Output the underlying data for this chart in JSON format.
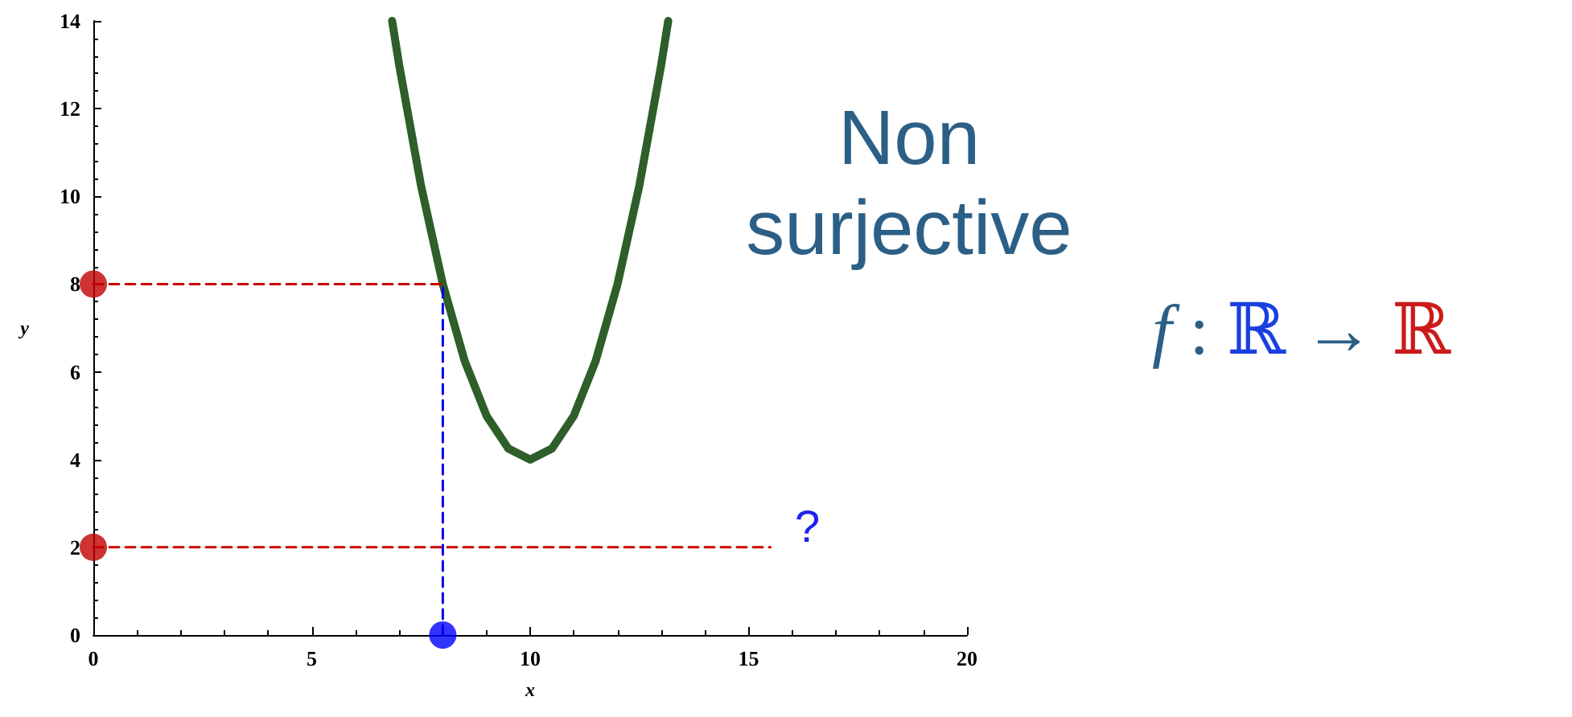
{
  "chart_data": {
    "type": "line",
    "xlabel": "x",
    "ylabel": "y",
    "xlim": [
      0,
      20
    ],
    "xticks": [
      0,
      5,
      10,
      15,
      20
    ],
    "ylim": [
      0,
      14
    ],
    "yticks": [
      0,
      2,
      4,
      6,
      8,
      10,
      12,
      14
    ],
    "grid": false,
    "series": [
      {
        "color": "#2e5e2a",
        "marker": "none",
        "line_style": "solid",
        "x": [
          6.84,
          7,
          7.5,
          8,
          8.5,
          9,
          9.5,
          10,
          10.5,
          11,
          11.5,
          12,
          12.5,
          13,
          13.16
        ],
        "values": [
          14,
          13,
          10.25,
          8,
          6.25,
          5,
          4.25,
          4,
          4.25,
          5,
          6.25,
          8,
          10.25,
          13,
          14
        ]
      },
      {
        "color": "#cc0000",
        "marker": "none",
        "line_style": "dashed",
        "x": [
          0,
          8
        ],
        "values": [
          8,
          8
        ]
      },
      {
        "color": "#cc0000",
        "marker": "none",
        "line_style": "dashed",
        "x": [
          0,
          15.5
        ],
        "values": [
          2,
          2
        ]
      },
      {
        "color": "#0000ee",
        "marker": "none",
        "line_style": "dashed",
        "x": [
          8,
          8
        ],
        "values": [
          0,
          8
        ]
      },
      {
        "type": "scatter",
        "color": "#c00000",
        "marker": "circle",
        "x": [
          0,
          0
        ],
        "values": [
          8,
          2
        ]
      },
      {
        "type": "scatter",
        "color": "#0000ff",
        "marker": "circle",
        "x": [
          8
        ],
        "values": [
          0
        ]
      }
    ],
    "annotations": [
      "Non\nsurjective",
      "f : ℝ → ℝ",
      "?"
    ]
  }
}
